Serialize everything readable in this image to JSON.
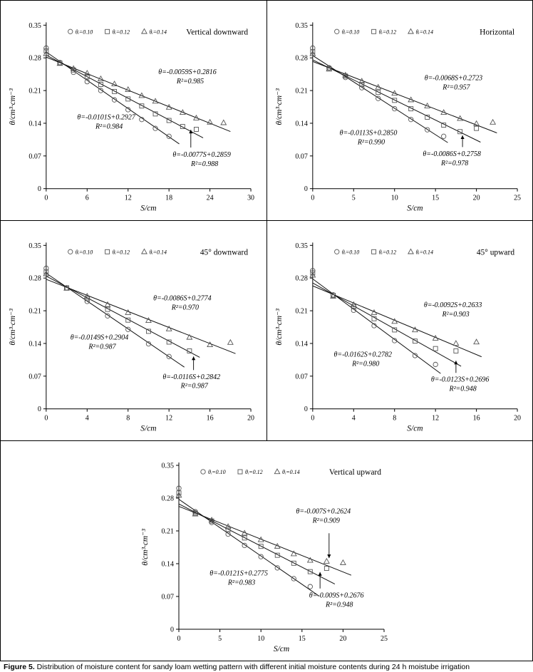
{
  "caption": {
    "label": "Figure 5.",
    "text": " Distribution of moisture content for sandy loam wetting pattern with different initial moisture contents during 24 h moistube irrigation"
  },
  "chart_data": [
    {
      "type": "scatter",
      "title": "Vertical downward",
      "xlabel": "S/cm",
      "ylabel": "θ/cm³·cm⁻³",
      "xlim": [
        0,
        30
      ],
      "xticks": [
        "0",
        "6",
        "12",
        "18",
        "24",
        "30"
      ],
      "ylim": [
        0,
        0.35
      ],
      "yticks": [
        "0",
        "0.07",
        "0.14",
        "0.21",
        "0.28",
        "0.35"
      ],
      "legend": [
        {
          "marker": "circle",
          "label": "θᵢ=0.10"
        },
        {
          "marker": "square",
          "label": "θᵢ=0.12"
        },
        {
          "marker": "triangle",
          "label": "θᵢ=0.14"
        }
      ],
      "series": [
        {
          "name": "θᵢ=0.10",
          "marker": "circle",
          "fit": {
            "slope": -0.0101,
            "intercept": 0.2927,
            "r2": 0.984,
            "x_range": [
              0,
              19.5
            ]
          },
          "x": [
            0,
            2,
            4,
            6,
            8,
            10,
            12,
            14,
            16,
            18
          ],
          "y": [
            0.301,
            0.27,
            0.249,
            0.229,
            0.21,
            0.19,
            0.169,
            0.148,
            0.129,
            0.112
          ]
        },
        {
          "name": "θᵢ=0.12",
          "marker": "square",
          "fit": {
            "slope": -0.0077,
            "intercept": 0.2859,
            "r2": 0.988,
            "x_range": [
              0,
              23
            ]
          },
          "x": [
            0,
            2,
            4,
            6,
            8,
            10,
            12,
            14,
            16,
            18,
            20,
            22
          ],
          "y": [
            0.295,
            0.269,
            0.254,
            0.24,
            0.223,
            0.208,
            0.192,
            0.177,
            0.16,
            0.146,
            0.133,
            0.127
          ]
        },
        {
          "name": "θᵢ=0.14",
          "marker": "triangle",
          "fit": {
            "slope": -0.0059,
            "intercept": 0.2816,
            "r2": 0.985,
            "x_range": [
              0,
              27
            ]
          },
          "x": [
            0,
            2,
            4,
            6,
            8,
            10,
            12,
            14,
            16,
            18,
            20,
            22,
            24,
            26
          ],
          "y": [
            0.289,
            0.268,
            0.257,
            0.247,
            0.235,
            0.224,
            0.212,
            0.199,
            0.187,
            0.174,
            0.163,
            0.151,
            0.142,
            0.141
          ]
        }
      ],
      "annotations": [
        {
          "series_marker": "triangle",
          "eq": "θ=-0.0059S+0.2816",
          "r2": "R²=0.985",
          "x": 20.7,
          "y": 0.245
        },
        {
          "series_marker": "circle",
          "eq": "θ=-0.0101S+0.2927",
          "r2": "R²=0.984",
          "x": 8.8,
          "y": 0.148
        },
        {
          "series_marker": "square",
          "eq": "θ=-0.0077S+0.2859",
          "r2": "R²=0.988",
          "x": 22.8,
          "y": 0.068,
          "arrow": {
            "x": 21.2,
            "y1": 0.088,
            "y2": 0.126
          }
        }
      ]
    },
    {
      "type": "scatter",
      "title": "Horizontal",
      "xlabel": "S/cm",
      "ylabel": "θ/cm³·cm⁻³",
      "xlim": [
        0,
        25
      ],
      "xticks": [
        "0",
        "5",
        "10",
        "15",
        "20",
        "25"
      ],
      "ylim": [
        0,
        0.35
      ],
      "yticks": [
        "0",
        "0.07",
        "0.14",
        "0.21",
        "0.28",
        "0.35"
      ],
      "legend": [
        {
          "marker": "circle",
          "label": "θᵢ=0.10"
        },
        {
          "marker": "square",
          "label": "θᵢ=0.12"
        },
        {
          "marker": "triangle",
          "label": "θᵢ=0.14"
        }
      ],
      "series": [
        {
          "name": "θᵢ=0.10",
          "marker": "circle",
          "fit": {
            "slope": -0.0113,
            "intercept": 0.285,
            "r2": 0.99,
            "x_range": [
              0,
              16.5
            ]
          },
          "x": [
            0,
            2,
            4,
            6,
            8,
            10,
            12,
            14,
            16
          ],
          "y": [
            0.301,
            0.259,
            0.238,
            0.216,
            0.193,
            0.171,
            0.148,
            0.126,
            0.112
          ]
        },
        {
          "name": "θᵢ=0.12",
          "marker": "square",
          "fit": {
            "slope": -0.0086,
            "intercept": 0.2758,
            "r2": 0.978,
            "x_range": [
              0,
              20.5
            ]
          },
          "x": [
            0,
            2,
            4,
            6,
            8,
            10,
            12,
            14,
            16,
            18,
            20
          ],
          "y": [
            0.293,
            0.257,
            0.241,
            0.223,
            0.206,
            0.189,
            0.171,
            0.153,
            0.136,
            0.122,
            0.129
          ]
        },
        {
          "name": "θᵢ=0.14",
          "marker": "triangle",
          "fit": {
            "slope": -0.0068,
            "intercept": 0.2723,
            "r2": 0.957,
            "x_range": [
              0,
              22.5
            ]
          },
          "x": [
            0,
            2,
            4,
            6,
            8,
            10,
            12,
            14,
            16,
            18,
            20,
            22
          ],
          "y": [
            0.289,
            0.256,
            0.243,
            0.23,
            0.217,
            0.204,
            0.19,
            0.177,
            0.163,
            0.15,
            0.139,
            0.142
          ]
        }
      ],
      "annotations": [
        {
          "series_marker": "triangle",
          "eq": "θ=-0.0068S+0.2723",
          "r2": "R²=0.957",
          "x": 17.2,
          "y": 0.232
        },
        {
          "series_marker": "circle",
          "eq": "θ=-0.0113S+0.2850",
          "r2": "R²=0.990",
          "x": 6.8,
          "y": 0.115
        },
        {
          "series_marker": "square",
          "eq": "θ=-0.0086S+0.2758",
          "r2": "R²=0.978",
          "x": 17.0,
          "y": 0.07,
          "arrow": {
            "x": 18.3,
            "y1": 0.089,
            "y2": 0.114
          }
        }
      ]
    },
    {
      "type": "scatter",
      "title": "45° downward",
      "xlabel": "S/cm",
      "ylabel": "θ/cm³·cm⁻³",
      "xlim": [
        0,
        20
      ],
      "xticks": [
        "0",
        "4",
        "8",
        "12",
        "16",
        "20"
      ],
      "ylim": [
        0,
        0.35
      ],
      "yticks": [
        "0",
        "0.07",
        "0.14",
        "0.21",
        "0.28",
        "0.35"
      ],
      "legend": [
        {
          "marker": "circle",
          "label": "θᵢ=0.10"
        },
        {
          "marker": "square",
          "label": "θᵢ=0.12"
        },
        {
          "marker": "triangle",
          "label": "θᵢ=0.14"
        }
      ],
      "series": [
        {
          "name": "θᵢ=0.10",
          "marker": "circle",
          "fit": {
            "slope": -0.0149,
            "intercept": 0.2904,
            "r2": 0.987,
            "x_range": [
              0,
              13.5
            ]
          },
          "x": [
            0,
            2,
            4,
            6,
            8,
            10,
            12
          ],
          "y": [
            0.301,
            0.259,
            0.23,
            0.199,
            0.17,
            0.139,
            0.112
          ]
        },
        {
          "name": "θᵢ=0.12",
          "marker": "square",
          "fit": {
            "slope": -0.0116,
            "intercept": 0.2842,
            "r2": 0.987,
            "x_range": [
              0,
              15
            ]
          },
          "x": [
            0,
            2,
            4,
            6,
            8,
            10,
            12,
            14
          ],
          "y": [
            0.293,
            0.259,
            0.236,
            0.213,
            0.19,
            0.166,
            0.143,
            0.124
          ]
        },
        {
          "name": "θᵢ=0.14",
          "marker": "triangle",
          "fit": {
            "slope": -0.0086,
            "intercept": 0.2774,
            "r2": 0.97,
            "x_range": [
              0,
              18.5
            ]
          },
          "x": [
            0,
            2,
            4,
            6,
            8,
            10,
            12,
            14,
            16,
            18
          ],
          "y": [
            0.289,
            0.258,
            0.241,
            0.223,
            0.206,
            0.189,
            0.171,
            0.153,
            0.137,
            0.142
          ]
        }
      ],
      "annotations": [
        {
          "series_marker": "triangle",
          "eq": "θ=-0.0086S+0.2774",
          "r2": "R²=0.970",
          "x": 13.3,
          "y": 0.232
        },
        {
          "series_marker": "circle",
          "eq": "θ=-0.0149S+0.2904",
          "r2": "R²=0.987",
          "x": 5.2,
          "y": 0.148
        },
        {
          "series_marker": "square",
          "eq": "θ=-0.0116S+0.2842",
          "r2": "R²=0.987",
          "x": 14.2,
          "y": 0.064,
          "arrow": {
            "x": 14.4,
            "y1": 0.083,
            "y2": 0.112
          }
        }
      ]
    },
    {
      "type": "scatter",
      "title": "45° upward",
      "xlabel": "S/cm",
      "ylabel": "θ/cm³·cm⁻³",
      "xlim": [
        0,
        20
      ],
      "xticks": [
        "0",
        "4",
        "8",
        "12",
        "16",
        "20"
      ],
      "ylim": [
        0,
        0.35
      ],
      "yticks": [
        "0",
        "0.07",
        "0.14",
        "0.21",
        "0.28",
        "0.35"
      ],
      "legend": [
        {
          "marker": "circle",
          "label": "θᵢ=0.10"
        },
        {
          "marker": "square",
          "label": "θᵢ=0.12"
        },
        {
          "marker": "triangle",
          "label": "θᵢ=0.14"
        }
      ],
      "series": [
        {
          "name": "θᵢ=0.10",
          "marker": "circle",
          "fit": {
            "slope": -0.0162,
            "intercept": 0.2782,
            "r2": 0.98,
            "x_range": [
              0,
              12.5
            ]
          },
          "x": [
            0,
            2,
            4,
            6,
            8,
            10,
            12
          ],
          "y": [
            0.296,
            0.244,
            0.211,
            0.178,
            0.146,
            0.114,
            0.095
          ]
        },
        {
          "name": "θᵢ=0.12",
          "marker": "square",
          "fit": {
            "slope": -0.0123,
            "intercept": 0.2696,
            "r2": 0.948,
            "x_range": [
              0,
              14.5
            ]
          },
          "x": [
            0,
            2,
            4,
            6,
            8,
            10,
            12,
            14
          ],
          "y": [
            0.291,
            0.243,
            0.219,
            0.193,
            0.169,
            0.145,
            0.129,
            0.124
          ]
        },
        {
          "name": "θᵢ=0.14",
          "marker": "triangle",
          "fit": {
            "slope": -0.0092,
            "intercept": 0.2633,
            "r2": 0.903,
            "x_range": [
              0,
              16.5
            ]
          },
          "x": [
            0,
            2,
            4,
            6,
            8,
            10,
            12,
            14,
            16
          ],
          "y": [
            0.286,
            0.241,
            0.223,
            0.206,
            0.187,
            0.169,
            0.151,
            0.14,
            0.143
          ]
        }
      ],
      "annotations": [
        {
          "series_marker": "triangle",
          "eq": "θ=-0.0092S+0.2633",
          "r2": "R²=0.903",
          "x": 13.7,
          "y": 0.218
        },
        {
          "series_marker": "circle",
          "eq": "θ=-0.0162S+0.2782",
          "r2": "R²=0.980",
          "x": 4.9,
          "y": 0.112
        },
        {
          "series_marker": "square",
          "eq": "θ=-0.0123S+0.2696",
          "r2": "R²=0.948",
          "x": 14.4,
          "y": 0.058,
          "arrow": {
            "x": 14.0,
            "y1": 0.077,
            "y2": 0.103
          }
        }
      ]
    },
    {
      "type": "scatter",
      "title": "Vertical upward",
      "xlabel": "S/cm",
      "ylabel": "θ/cm³·cm⁻³",
      "xlim": [
        0,
        25
      ],
      "xticks": [
        "0",
        "5",
        "10",
        "15",
        "20",
        "25"
      ],
      "ylim": [
        0,
        0.35
      ],
      "yticks": [
        "0",
        "0.07",
        "0.14",
        "0.21",
        "0.28",
        "0.35"
      ],
      "legend": [
        {
          "marker": "circle",
          "label": "θᵢ=0.10"
        },
        {
          "marker": "square",
          "label": "θᵢ=0.12"
        },
        {
          "marker": "triangle",
          "label": "θᵢ=0.14"
        }
      ],
      "series": [
        {
          "name": "θᵢ=0.10",
          "marker": "circle",
          "fit": {
            "slope": -0.0121,
            "intercept": 0.2775,
            "r2": 0.983,
            "x_range": [
              0,
              17
            ]
          },
          "x": [
            0,
            2,
            4,
            6,
            8,
            10,
            12,
            14,
            16
          ],
          "y": [
            0.301,
            0.251,
            0.228,
            0.203,
            0.179,
            0.155,
            0.131,
            0.108,
            0.091
          ]
        },
        {
          "name": "θᵢ=0.12",
          "marker": "square",
          "fit": {
            "slope": -0.009,
            "intercept": 0.2676,
            "r2": 0.948,
            "x_range": [
              0,
              19
            ]
          },
          "x": [
            0,
            2,
            4,
            6,
            8,
            10,
            12,
            14,
            16,
            18
          ],
          "y": [
            0.291,
            0.248,
            0.231,
            0.213,
            0.195,
            0.177,
            0.158,
            0.141,
            0.123,
            0.13
          ]
        },
        {
          "name": "θᵢ=0.14",
          "marker": "triangle",
          "fit": {
            "slope": -0.007,
            "intercept": 0.2624,
            "r2": 0.909,
            "x_range": [
              0,
              21
            ]
          },
          "x": [
            0,
            2,
            4,
            6,
            8,
            10,
            12,
            14,
            16,
            18,
            20
          ],
          "y": [
            0.286,
            0.246,
            0.233,
            0.219,
            0.205,
            0.191,
            0.177,
            0.161,
            0.147,
            0.145,
            0.142
          ]
        }
      ],
      "annotations": [
        {
          "series_marker": "triangle",
          "eq": "θ=-0.007S+0.2624",
          "r2": "R²=0.909",
          "x": 17.6,
          "y": 0.247,
          "arrow": {
            "x": 18.3,
            "y1": 0.205,
            "y2": 0.152
          }
        },
        {
          "series_marker": "circle",
          "eq": "θ=-0.0121S+0.2775",
          "r2": "R²=0.983",
          "x": 7.3,
          "y": 0.115
        },
        {
          "series_marker": "square",
          "eq": "θ=-0.009S+0.2676",
          "r2": "R²=0.948",
          "x": 19.2,
          "y": 0.068,
          "arrow": {
            "x": 17.2,
            "y1": 0.087,
            "y2": 0.122
          }
        }
      ]
    }
  ]
}
